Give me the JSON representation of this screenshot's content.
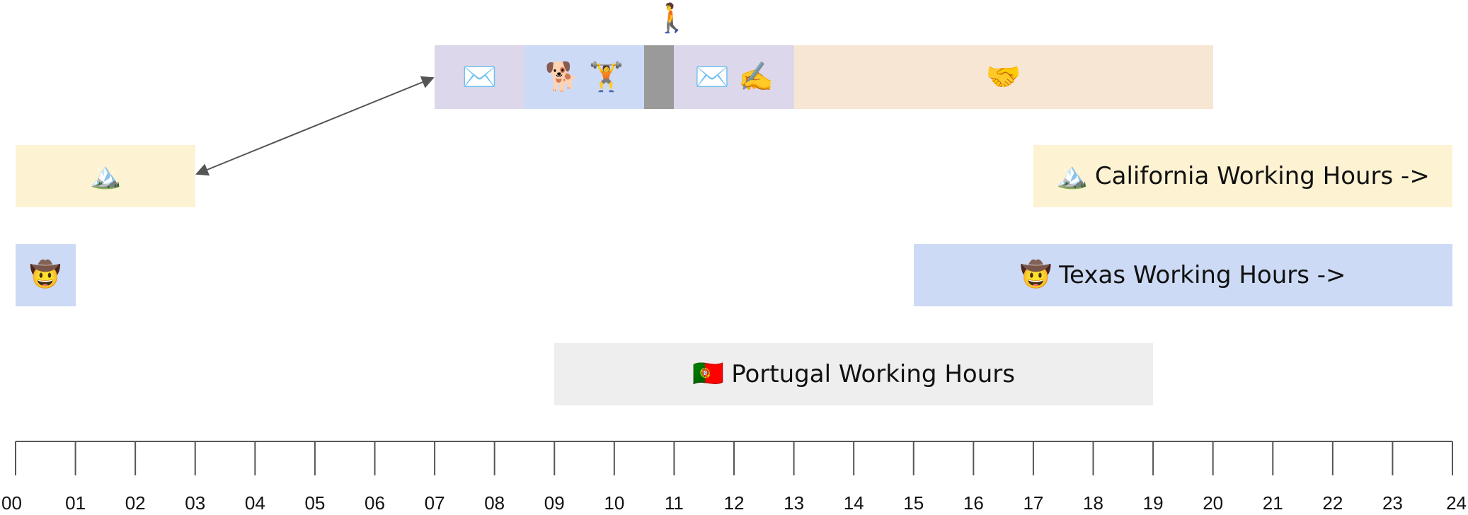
{
  "timeline": {
    "start_hour": 0,
    "end_hour": 24,
    "tick_labels": [
      "00",
      "01",
      "02",
      "03",
      "04",
      "05",
      "06",
      "07",
      "08",
      "09",
      "10",
      "11",
      "12",
      "13",
      "14",
      "15",
      "16",
      "17",
      "18",
      "19",
      "20",
      "21",
      "22",
      "23",
      "24"
    ],
    "axis_color": "#555555"
  },
  "schedule": {
    "walker_icon": "🚶",
    "walker_hour": 10.9,
    "segments": [
      {
        "name": "email-block-morning",
        "start": 7.0,
        "end": 8.5,
        "icons": [
          "✉️"
        ],
        "color": "#dcd7ea"
      },
      {
        "name": "dog-workout-block",
        "start": 8.5,
        "end": 10.5,
        "icons": [
          "🐕",
          "🏋️"
        ],
        "color": "#ccdaf5"
      },
      {
        "name": "break-block",
        "start": 10.5,
        "end": 11.0,
        "icons": [],
        "color": "#9a9a9a"
      },
      {
        "name": "email-writing-block",
        "start": 11.0,
        "end": 13.0,
        "icons": [
          "✉️",
          "✍️"
        ],
        "color": "#dcd7ea"
      },
      {
        "name": "meetings-block",
        "start": 13.0,
        "end": 20.0,
        "icons": [
          "🤝"
        ],
        "color": "#f7e6d3"
      }
    ]
  },
  "lanes": {
    "california": {
      "color": "#fdf3d3",
      "left": {
        "start": 0,
        "end": 3,
        "icon": "🏔️"
      },
      "right": {
        "start": 17,
        "end": 24,
        "icon": "🏔️",
        "label": "California Working Hours ->"
      }
    },
    "texas": {
      "color": "#ccdaf5",
      "left": {
        "start": 0,
        "end": 1,
        "icon": "🤠"
      },
      "right": {
        "start": 15,
        "end": 24,
        "icon": "🤠",
        "label": "Texas Working Hours ->"
      }
    },
    "portugal": {
      "color": "#eeeeee",
      "bar": {
        "start": 9,
        "end": 19,
        "icon": "🇵🇹",
        "label": "Portugal Working Hours"
      }
    }
  },
  "arrow": {
    "from_hour": 3,
    "to_hour": 7,
    "color": "#555555"
  }
}
